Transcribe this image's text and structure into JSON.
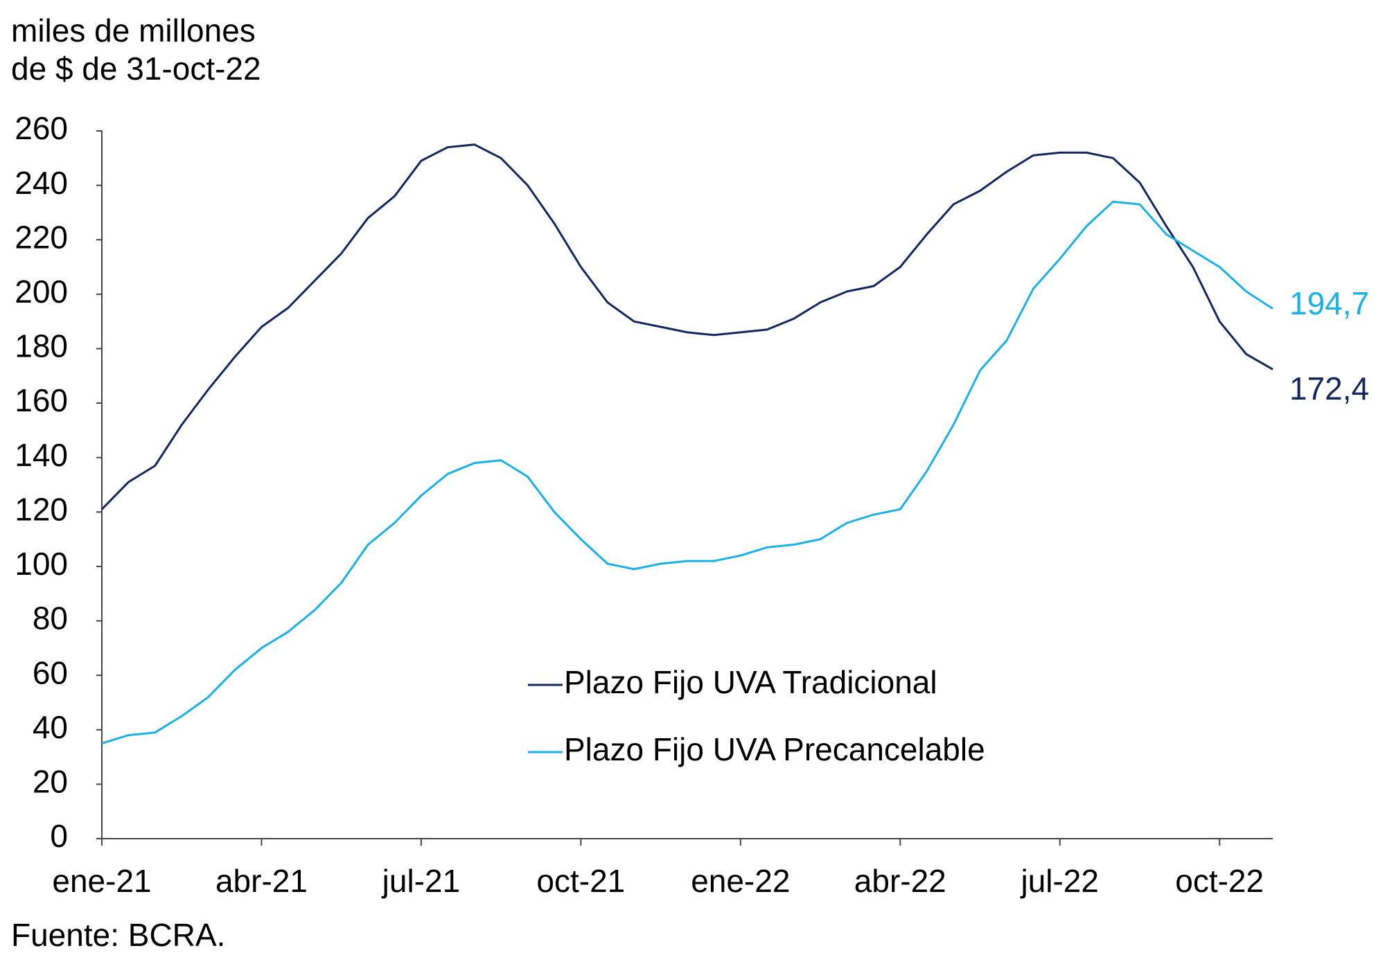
{
  "chart_data": {
    "type": "line",
    "ylabel": [
      "miles de millones",
      "de $ de 31-oct-22"
    ],
    "source": "Fuente: BCRA.",
    "x": [
      0,
      0.5,
      1,
      1.5,
      2,
      2.5,
      3,
      3.5,
      4,
      4.5,
      5,
      5.5,
      6,
      6.5,
      7,
      7.5,
      8,
      8.5,
      9,
      9.5,
      10,
      10.5,
      11,
      11.5,
      12,
      12.5,
      13,
      13.5,
      14,
      14.5,
      15,
      15.5,
      16,
      16.5,
      17,
      17.5,
      18,
      18.5,
      19,
      19.5,
      20,
      20.5,
      21,
      21.5,
      22
    ],
    "xlim": [
      0,
      22
    ],
    "xticks": [
      {
        "value": 0,
        "label": "ene-21"
      },
      {
        "value": 3,
        "label": "abr-21"
      },
      {
        "value": 6,
        "label": "jul-21"
      },
      {
        "value": 9,
        "label": "oct-21"
      },
      {
        "value": 12,
        "label": "ene-22"
      },
      {
        "value": 15,
        "label": "abr-22"
      },
      {
        "value": 18,
        "label": "jul-22"
      },
      {
        "value": 21,
        "label": "oct-22"
      }
    ],
    "ylim": [
      0,
      260
    ],
    "yticks": [
      0,
      20,
      40,
      60,
      80,
      100,
      120,
      140,
      160,
      180,
      200,
      220,
      240,
      260
    ],
    "grid": false,
    "legend": "center",
    "series": [
      {
        "name": "Plazo Fijo UVA Tradicional",
        "color": "#13275e",
        "values": [
          121,
          131,
          137,
          152,
          165,
          177,
          188,
          195,
          205,
          215,
          228,
          236,
          249,
          254,
          255,
          250,
          240,
          226,
          210,
          197,
          190,
          188,
          186,
          185,
          186,
          187,
          191,
          197,
          201,
          203,
          210,
          222,
          233,
          238,
          245,
          251,
          252,
          252,
          250,
          241,
          225,
          210,
          190,
          178,
          172.4
        ],
        "value_labels": [
          null,
          null,
          null,
          null,
          null,
          null,
          null,
          null,
          null,
          null,
          null,
          null,
          null,
          null,
          null,
          null,
          null,
          null,
          null,
          null,
          null,
          null,
          null,
          null,
          null,
          null,
          null,
          null,
          null,
          null,
          null,
          null,
          null,
          null,
          null,
          null,
          null,
          null,
          null,
          null,
          null,
          null,
          null,
          null,
          "172,4"
        ]
      },
      {
        "name": "Plazo Fijo UVA Precancelable",
        "color": "#1ab0e8",
        "values": [
          35,
          38,
          39,
          45,
          52,
          62,
          70,
          76,
          84,
          94,
          108,
          116,
          126,
          134,
          138,
          139,
          133,
          120,
          110,
          101,
          99,
          101,
          102,
          102,
          104,
          107,
          108,
          110,
          116,
          119,
          121,
          135,
          152,
          172,
          183,
          202,
          213,
          225,
          234,
          233,
          222,
          216,
          210,
          201,
          194.7
        ],
        "value_labels": [
          null,
          null,
          null,
          null,
          null,
          null,
          null,
          null,
          null,
          null,
          null,
          null,
          null,
          null,
          null,
          null,
          null,
          null,
          null,
          null,
          null,
          null,
          null,
          null,
          null,
          null,
          null,
          null,
          null,
          null,
          null,
          null,
          null,
          null,
          null,
          null,
          null,
          null,
          null,
          null,
          null,
          null,
          null,
          null,
          "194,7"
        ]
      }
    ]
  }
}
